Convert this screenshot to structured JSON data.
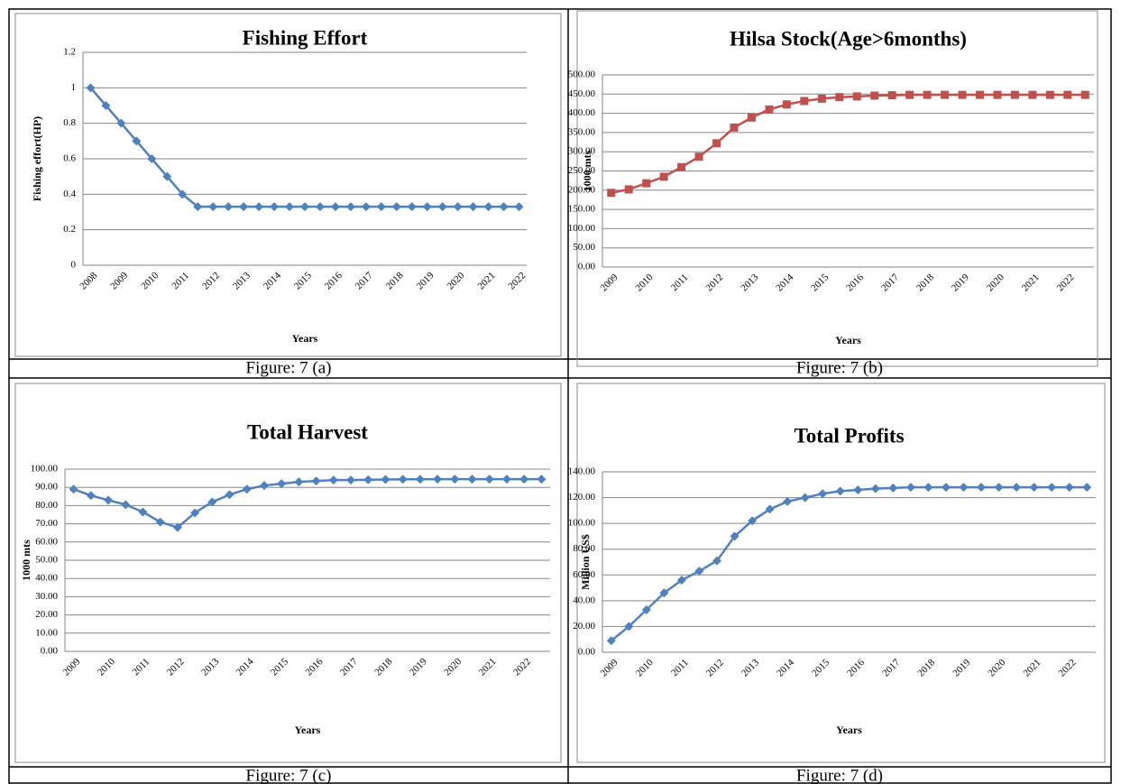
{
  "chart_data": [
    {
      "type": "line",
      "title": "Fishing Effort",
      "x_label": "Years",
      "y_label": "Fishing effort(HP)",
      "categories": [
        "2008",
        null,
        "2009",
        null,
        "2010",
        null,
        "2011",
        null,
        "2012",
        null,
        "2013",
        null,
        "2014",
        null,
        "2015",
        null,
        "2016",
        null,
        "2017",
        null,
        "2018",
        null,
        "2019",
        null,
        "2020",
        null,
        "2021",
        null,
        "2022"
      ],
      "series": [
        {
          "color": "#4f81bd",
          "marker": "diamond",
          "values": [
            1,
            0.9,
            0.8,
            0.7,
            0.6,
            0.5,
            0.4,
            0.33,
            0.33,
            0.33,
            0.33,
            0.33,
            0.33,
            0.33,
            0.33,
            0.33,
            0.33,
            0.33,
            0.33,
            0.33,
            0.33,
            0.33,
            0.33,
            0.33,
            0.33,
            0.33,
            0.33,
            0.33,
            0.33
          ]
        }
      ],
      "ylim": [
        0,
        1.2
      ],
      "yticks": [
        0,
        0.2,
        0.4,
        0.6,
        0.8,
        1,
        1.2
      ],
      "grid": true
    },
    {
      "type": "line",
      "title": "Hilsa Stock(Age>6months)",
      "x_label": "Years",
      "y_label": "1000 mts",
      "categories": [
        "2009",
        null,
        "2010",
        null,
        "2011",
        null,
        "2012",
        null,
        "2013",
        null,
        "2014",
        null,
        "2015",
        null,
        "2016",
        null,
        "2017",
        null,
        "2018",
        null,
        "2019",
        null,
        "2020",
        null,
        "2021",
        null,
        "2022",
        null
      ],
      "series": [
        {
          "color": "#c0504d",
          "marker": "square",
          "values": [
            193,
            202,
            218,
            235,
            260,
            287,
            322,
            363,
            389,
            410,
            423,
            432,
            438,
            442,
            444,
            446,
            447,
            448,
            448,
            448,
            448,
            448,
            448,
            448,
            448,
            448,
            448,
            448
          ]
        }
      ],
      "ylim": [
        0,
        500
      ],
      "yticks": [
        {
          "value": 0,
          "label": "0.00"
        },
        {
          "value": 50,
          "label": "50.00"
        },
        {
          "value": 100,
          "label": "100.00"
        },
        {
          "value": 150,
          "label": "150.00"
        },
        {
          "value": 200,
          "label": "200.00"
        },
        {
          "value": 250,
          "label": "250.00"
        },
        {
          "value": 300,
          "label": "300.00"
        },
        {
          "value": 350,
          "label": "350.00"
        },
        {
          "value": 400,
          "label": "400.00"
        },
        {
          "value": 450,
          "label": "450.00"
        },
        {
          "value": 500,
          "label": "500.00"
        }
      ],
      "grid": true
    },
    {
      "type": "line",
      "title": "Total Harvest",
      "x_label": "Years",
      "y_label": "1000 mts",
      "categories": [
        "2009",
        null,
        "2010",
        null,
        "2011",
        null,
        "2012",
        null,
        "2013",
        null,
        "2014",
        null,
        "2015",
        null,
        "2016",
        null,
        "2017",
        null,
        "2018",
        null,
        "2019",
        null,
        "2020",
        null,
        "2021",
        null,
        "2022",
        null
      ],
      "series": [
        {
          "color": "#4f81bd",
          "marker": "diamond",
          "values": [
            89,
            85.5,
            83,
            80.5,
            76.5,
            71,
            68,
            76,
            82,
            86,
            89,
            91,
            92,
            93,
            93.5,
            94,
            94,
            94.2,
            94.3,
            94.4,
            94.4,
            94.5,
            94.5,
            94.5,
            94.5,
            94.5,
            94.5,
            94.5
          ]
        }
      ],
      "ylim": [
        0,
        100
      ],
      "yticks": [
        {
          "value": 0,
          "label": "0.00"
        },
        {
          "value": 10,
          "label": "10.00"
        },
        {
          "value": 20,
          "label": "20.00"
        },
        {
          "value": 30,
          "label": "30.00"
        },
        {
          "value": 40,
          "label": "40.00"
        },
        {
          "value": 50,
          "label": "50.00"
        },
        {
          "value": 60,
          "label": "60.00"
        },
        {
          "value": 70,
          "label": "70.00"
        },
        {
          "value": 80,
          "label": "80.00"
        },
        {
          "value": 90,
          "label": "90.00"
        },
        {
          "value": 100,
          "label": "100.00"
        }
      ],
      "grid": true
    },
    {
      "type": "line",
      "title": "Total Profits",
      "x_label": "Years",
      "y_label": "Million US$",
      "categories": [
        "2009",
        null,
        "2010",
        null,
        "2011",
        null,
        "2012",
        null,
        "2013",
        null,
        "2014",
        null,
        "2015",
        null,
        "2016",
        null,
        "2017",
        null,
        "2018",
        null,
        "2019",
        null,
        "2020",
        null,
        "2021",
        null,
        "2022",
        null
      ],
      "series": [
        {
          "color": "#4f81bd",
          "marker": "diamond",
          "values": [
            9,
            20,
            33,
            46,
            56,
            63,
            71,
            90,
            102,
            111,
            117,
            120,
            123,
            125,
            126,
            127,
            127.5,
            128,
            128,
            128,
            128,
            128,
            128,
            128,
            128,
            128,
            128,
            128
          ]
        }
      ],
      "ylim": [
        0,
        140
      ],
      "yticks": [
        {
          "value": 0,
          "label": "0.00"
        },
        {
          "value": 20,
          "label": "20.00"
        },
        {
          "value": 40,
          "label": "40.00"
        },
        {
          "value": 60,
          "label": "60.00"
        },
        {
          "value": 80,
          "label": "80.00"
        },
        {
          "value": 100,
          "label": "100.00"
        },
        {
          "value": 120,
          "label": "120.00"
        },
        {
          "value": 140,
          "label": "140.00"
        }
      ],
      "grid": true
    }
  ],
  "captions": [
    "Figure: 7 (a)",
    "Figure: 7 (b)",
    "Figure: 7 (c)",
    "Figure: 7 (d)"
  ]
}
